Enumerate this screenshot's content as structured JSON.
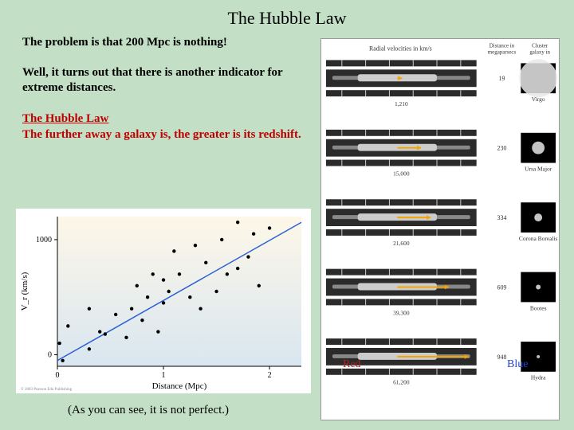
{
  "title": "The Hubble Law",
  "p1": "The problem is that 200 Mpc is nothing!",
  "p2": "Well, it turns out that there is another indicator for extreme distances.",
  "law_heading": "The Hubble Law",
  "law_body": "The further away a galaxy is, the greater is its redshift.",
  "footnote": "(As you can see, it is not perfect.)",
  "red_label": "Red",
  "blue_label": "Blue",
  "chart": {
    "type": "scatter",
    "xlabel": "Distance (Mpc)",
    "ylabel": "V_r (km/s)",
    "xlim": [
      0,
      2.3
    ],
    "ylim": [
      -100,
      1200
    ],
    "xticks": [
      0,
      1,
      2
    ],
    "yticks": [
      0,
      1000
    ],
    "tick_fontsize": 10,
    "label_fontsize": 11,
    "line_color": "#2b5fd4",
    "line_width": 1.5,
    "point_color": "#000000",
    "point_radius": 2.2,
    "gradient_top": "#fdf7e8",
    "gradient_bottom": "#d9e6f0",
    "fit_line": {
      "x1": 0,
      "y1": -50,
      "x2": 2.3,
      "y2": 1150
    },
    "points": [
      [
        0.02,
        100
      ],
      [
        0.05,
        -50
      ],
      [
        0.1,
        250
      ],
      [
        0.3,
        50
      ],
      [
        0.3,
        400
      ],
      [
        0.4,
        200
      ],
      [
        0.45,
        180
      ],
      [
        0.55,
        350
      ],
      [
        0.65,
        150
      ],
      [
        0.7,
        400
      ],
      [
        0.75,
        600
      ],
      [
        0.8,
        300
      ],
      [
        0.85,
        500
      ],
      [
        0.9,
        700
      ],
      [
        0.95,
        200
      ],
      [
        1.0,
        650
      ],
      [
        1.0,
        450
      ],
      [
        1.05,
        550
      ],
      [
        1.1,
        900
      ],
      [
        1.15,
        700
      ],
      [
        1.25,
        500
      ],
      [
        1.3,
        950
      ],
      [
        1.35,
        400
      ],
      [
        1.4,
        800
      ],
      [
        1.5,
        550
      ],
      [
        1.55,
        1000
      ],
      [
        1.6,
        700
      ],
      [
        1.7,
        750
      ],
      [
        1.8,
        850
      ],
      [
        1.85,
        1050
      ],
      [
        1.9,
        600
      ],
      [
        2.0,
        1100
      ],
      [
        1.7,
        1150
      ]
    ]
  },
  "spectra": {
    "header_left": "Radial velocities in km/s",
    "header_right_l1": "Distance in",
    "header_right_l2": "megaparsecs",
    "header_right_l3": "Cluster galaxy in",
    "arrow_color": "#f5a300",
    "bg_color": "#2b2b2b",
    "line_color": "#cfcfcf",
    "galaxy_bg": "#000000",
    "galaxy_dot": "#e8e8e8",
    "label_color": "#333333",
    "label_fontsize": 7.5,
    "rows": [
      {
        "velocity": "1,210",
        "arrow_start": 90,
        "arrow_len": 6,
        "dist": "19",
        "name": "Virgo",
        "size": 24
      },
      {
        "velocity": "15,000",
        "arrow_start": 90,
        "arrow_len": 30,
        "dist": "230",
        "name": "Ursa Major",
        "size": 8
      },
      {
        "velocity": "21,600",
        "arrow_start": 90,
        "arrow_len": 42,
        "dist": "334",
        "name": "Corona Borealis",
        "size": 5
      },
      {
        "velocity": "39,300",
        "arrow_start": 90,
        "arrow_len": 65,
        "dist": "609",
        "name": "Bootes",
        "size": 3
      },
      {
        "velocity": "61,200",
        "arrow_start": 90,
        "arrow_len": 90,
        "dist": "948",
        "name": "Hydra",
        "size": 2
      }
    ]
  },
  "colors": {
    "slide_bg": "#c3e0c7",
    "text": "#000000",
    "law_text": "#c00000",
    "red_label": "#aa2222",
    "blue_label": "#2244cc"
  }
}
